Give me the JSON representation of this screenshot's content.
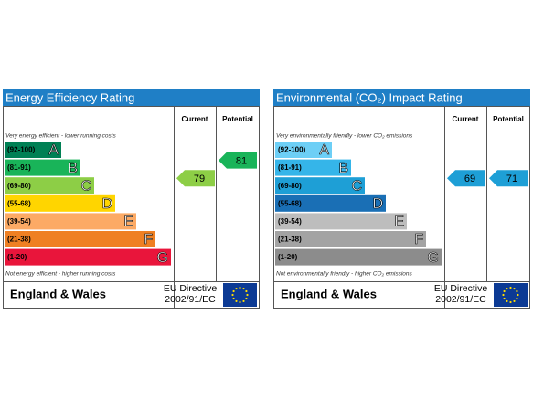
{
  "panels": [
    {
      "title": "Energy Efficiency Rating",
      "current_label": "Current",
      "potential_label": "Potential",
      "top_note": "Very energy efficient - lower running costs",
      "bottom_note": "Not energy efficient - higher running costs",
      "bands": [
        {
          "range": "(92-100)",
          "letter": "A",
          "color": "#008054"
        },
        {
          "range": "(81-91)",
          "letter": "B",
          "color": "#19b459"
        },
        {
          "range": "(69-80)",
          "letter": "C",
          "color": "#8dce46"
        },
        {
          "range": "(55-68)",
          "letter": "D",
          "color": "#ffd500"
        },
        {
          "range": "(39-54)",
          "letter": "E",
          "color": "#fcaa65"
        },
        {
          "range": "(21-38)",
          "letter": "F",
          "color": "#ef8023"
        },
        {
          "range": "(1-20)",
          "letter": "G",
          "color": "#e9153b"
        }
      ],
      "current": 79,
      "potential": 81,
      "country": "England & Wales",
      "directive": [
        "EU Directive",
        "2002/91/EC"
      ]
    },
    {
      "title": "Environmental (CO₂) Impact Rating",
      "current_label": "Current",
      "potential_label": "Potential",
      "top_note": "Very environmentally friendly - lower CO₂ emissions",
      "bottom_note": "Not environmentally friendly - higher CO₂ emissions",
      "bands": [
        {
          "range": "(92-100)",
          "letter": "A",
          "color": "#6dcff6"
        },
        {
          "range": "(81-91)",
          "letter": "B",
          "color": "#35b5e9"
        },
        {
          "range": "(69-80)",
          "letter": "C",
          "color": "#1e9fd6"
        },
        {
          "range": "(55-68)",
          "letter": "D",
          "color": "#1a6fb5"
        },
        {
          "range": "(39-54)",
          "letter": "E",
          "color": "#bdbdbd"
        },
        {
          "range": "(21-38)",
          "letter": "F",
          "color": "#a3a3a3"
        },
        {
          "range": "(1-20)",
          "letter": "G",
          "color": "#8c8c8c"
        }
      ],
      "current": 69,
      "potential": 71,
      "country": "England & Wales",
      "directive": [
        "EU Directive",
        "2002/91/EC"
      ]
    }
  ]
}
